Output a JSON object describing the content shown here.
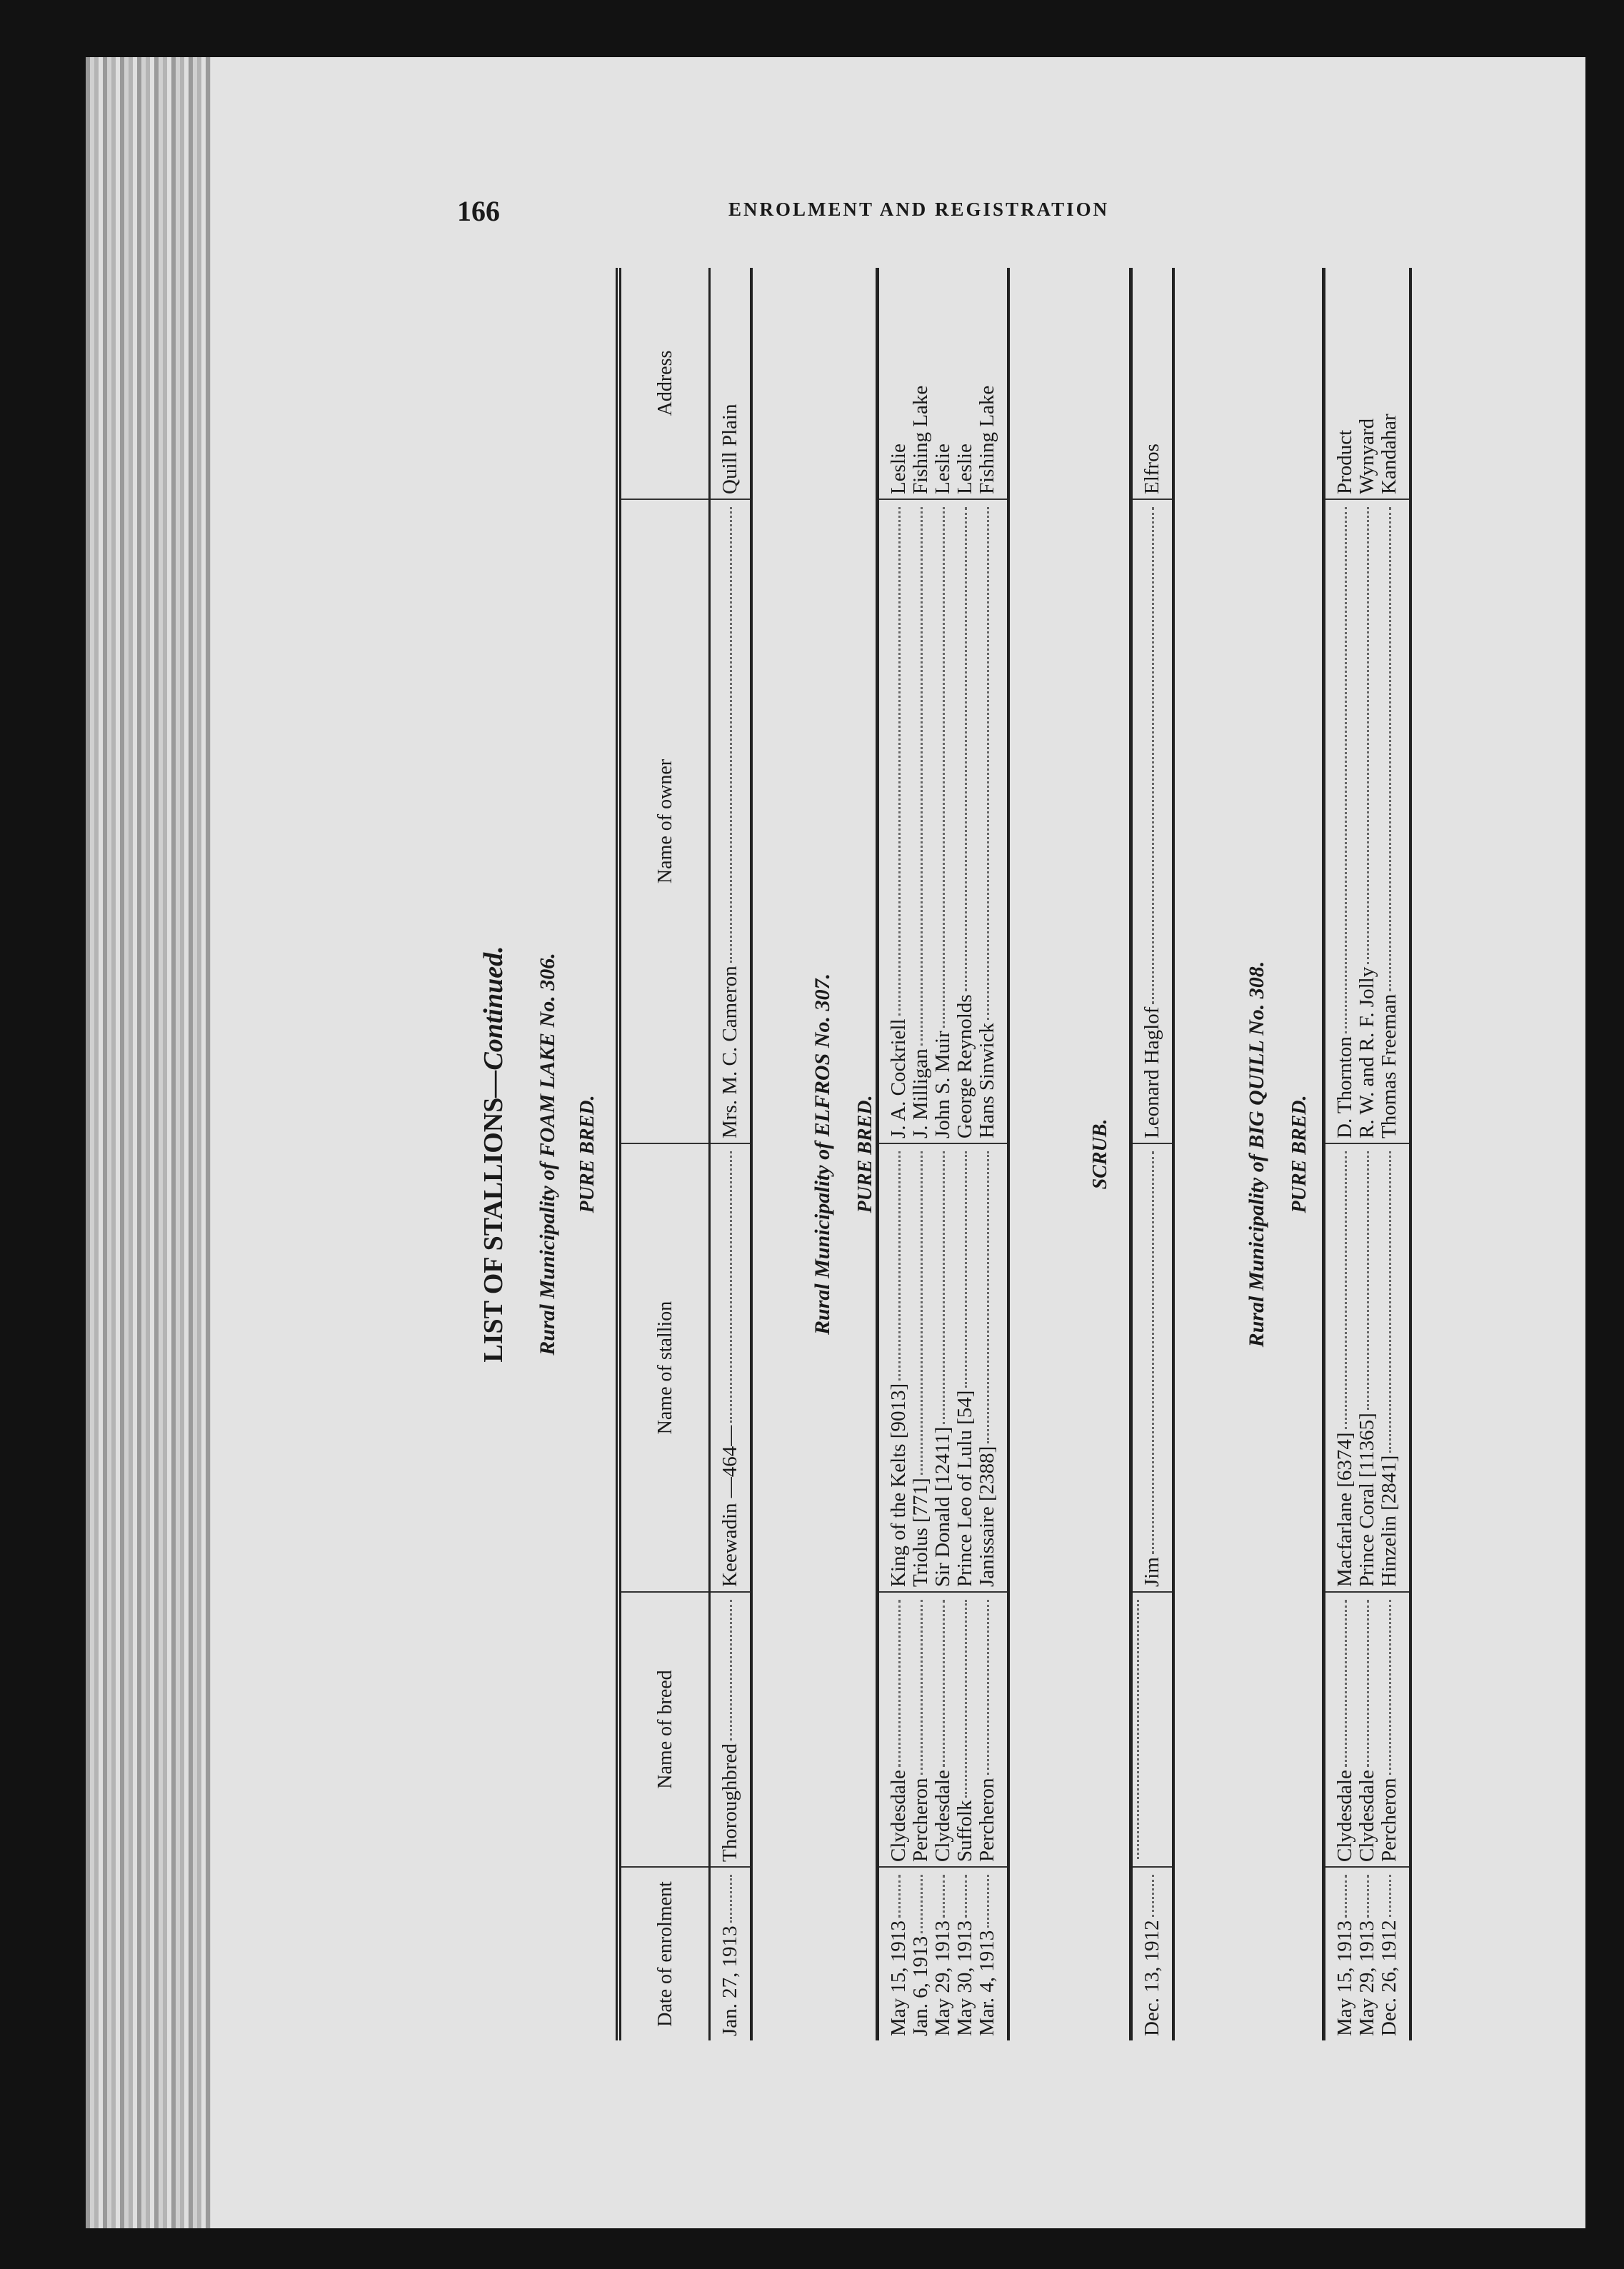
{
  "header": {
    "page_number": "166",
    "running_head": "ENROLMENT AND REGISTRATION"
  },
  "title": {
    "main": "LIST OF STALLIONS",
    "continued": "—Continued."
  },
  "columns": [
    "Date of enrolment",
    "Name of breed",
    "Name of stallion",
    "Name of owner",
    "Address"
  ],
  "sections": [
    {
      "municipality": "Rural Municipality of FOAM LAKE No. 306.",
      "class": "PURE BRED.",
      "rows": [
        [
          "Jan. 27, 1913",
          "Thoroughbred",
          "Keewadin —464—",
          "Mrs. M. C. Cameron",
          "Quill Plain"
        ]
      ]
    },
    {
      "municipality": "Rural Municipality of ELFROS No. 307.",
      "class": "PURE BRED.",
      "rows": [
        [
          "May 15, 1913",
          "Clydesdale",
          "King of the Kelts [9013]",
          "J. A. Cockriell",
          "Leslie"
        ],
        [
          "Jan. 6, 1913",
          "Percheron",
          "Triolus [771]",
          "J. Milligan",
          "Fishing Lake"
        ],
        [
          "May 29, 1913",
          "Clydesdale",
          "Sir Donald [12411]",
          "John S. Muir",
          "Leslie"
        ],
        [
          "May 30, 1913",
          "Suffolk",
          "Prince Leo of Lulu [54]",
          "George Reynolds",
          "Leslie"
        ],
        [
          "Mar. 4, 1913",
          "Percheron",
          "Janissaire [2388]",
          "Hans Sinwick",
          "Fishing Lake"
        ]
      ]
    },
    {
      "municipality": "",
      "class": "SCRUB.",
      "rows": [
        [
          "Dec. 13, 1912",
          "",
          "Jim",
          "Leonard Haglof",
          "Elfros"
        ]
      ]
    },
    {
      "municipality": "Rural Municipality of BIG QUILL No. 308.",
      "class": "PURE BRED.",
      "rows": [
        [
          "May 15, 1913",
          "Clydesdale",
          "Macfarlane [6374]",
          "D. Thornton",
          "Product"
        ],
        [
          "May 29, 1913",
          "Clydesdale",
          "Prince Coral [11365]",
          "R. W. and R. F. Jolly",
          "Wynyard"
        ],
        [
          "Dec. 26, 1912",
          "Percheron",
          "Hinzelin [2841]",
          "Thomas Freeman",
          "Kandahar"
        ]
      ]
    }
  ]
}
